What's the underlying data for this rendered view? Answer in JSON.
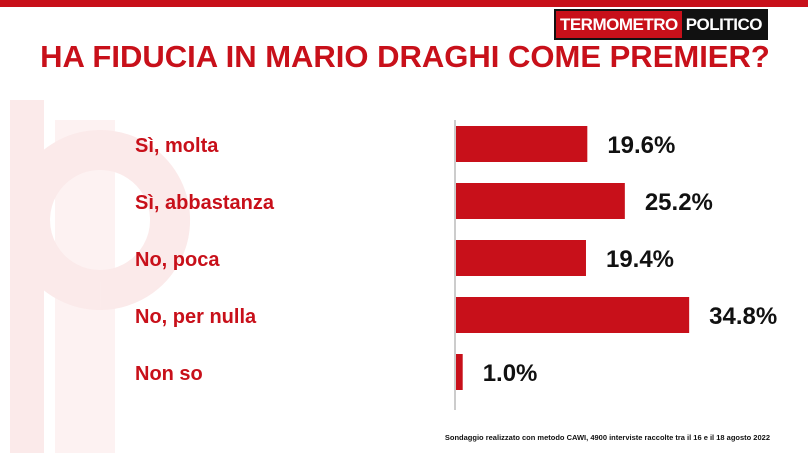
{
  "brand": {
    "part1": "TERMOMETRO",
    "part2": "POLITICO"
  },
  "footnote": "Sondaggio realizzato con metodo CAWI, 4900 interviste raccolte tra il 16 e il 18 agosto 2022",
  "colors": {
    "accent": "#c8101a",
    "watermark": "#fbeaea"
  },
  "chart_data": {
    "type": "bar",
    "orientation": "horizontal",
    "title": "HA FIDUCIA IN MARIO DRAGHI COME PREMIER?",
    "categories": [
      "Sì, molta",
      "Sì, abbastanza",
      "No, poca",
      "No, per nulla",
      "Non so"
    ],
    "values": [
      19.6,
      25.2,
      19.4,
      34.8,
      1.0
    ],
    "value_labels": [
      "19.6%",
      "25.2%",
      "19.4%",
      "34.8%",
      "1.0%"
    ],
    "unit": "%",
    "xlim": [
      0,
      40
    ],
    "grid": false,
    "legend": "none"
  }
}
